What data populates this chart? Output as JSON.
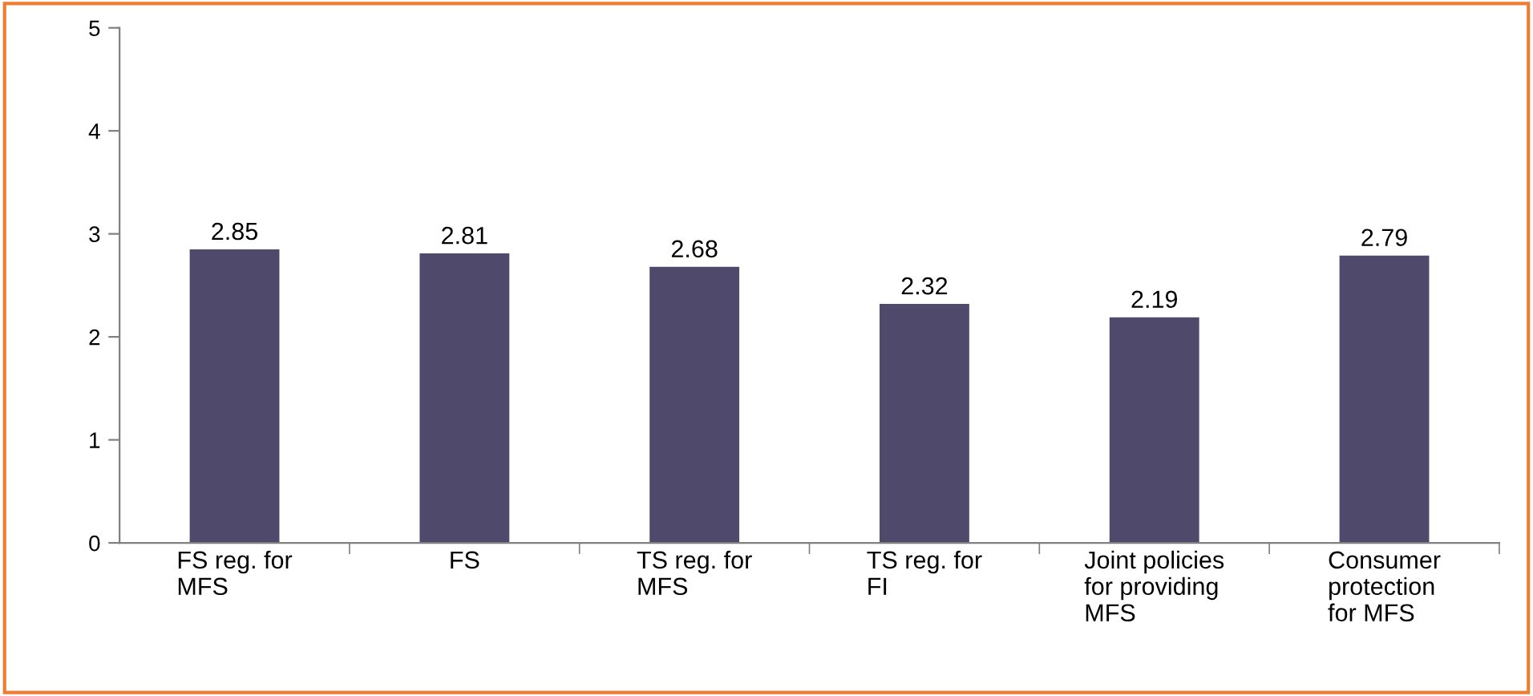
{
  "chart_data": {
    "type": "bar",
    "categories": [
      "FS reg. for\nMFS",
      "FS",
      "TS reg. for\nMFS",
      "TS reg. for\nFI",
      "Joint policies\nfor providing\nMFS",
      "Consumer\nprotection\nfor MFS"
    ],
    "values": [
      2.85,
      2.81,
      2.68,
      2.32,
      2.19,
      2.79
    ],
    "color": "#4f4a6b",
    "ylim": [
      0,
      5
    ],
    "yticks": [
      0,
      1,
      2,
      3,
      4,
      5
    ],
    "grid": false,
    "legend": false,
    "data_labels": true
  }
}
